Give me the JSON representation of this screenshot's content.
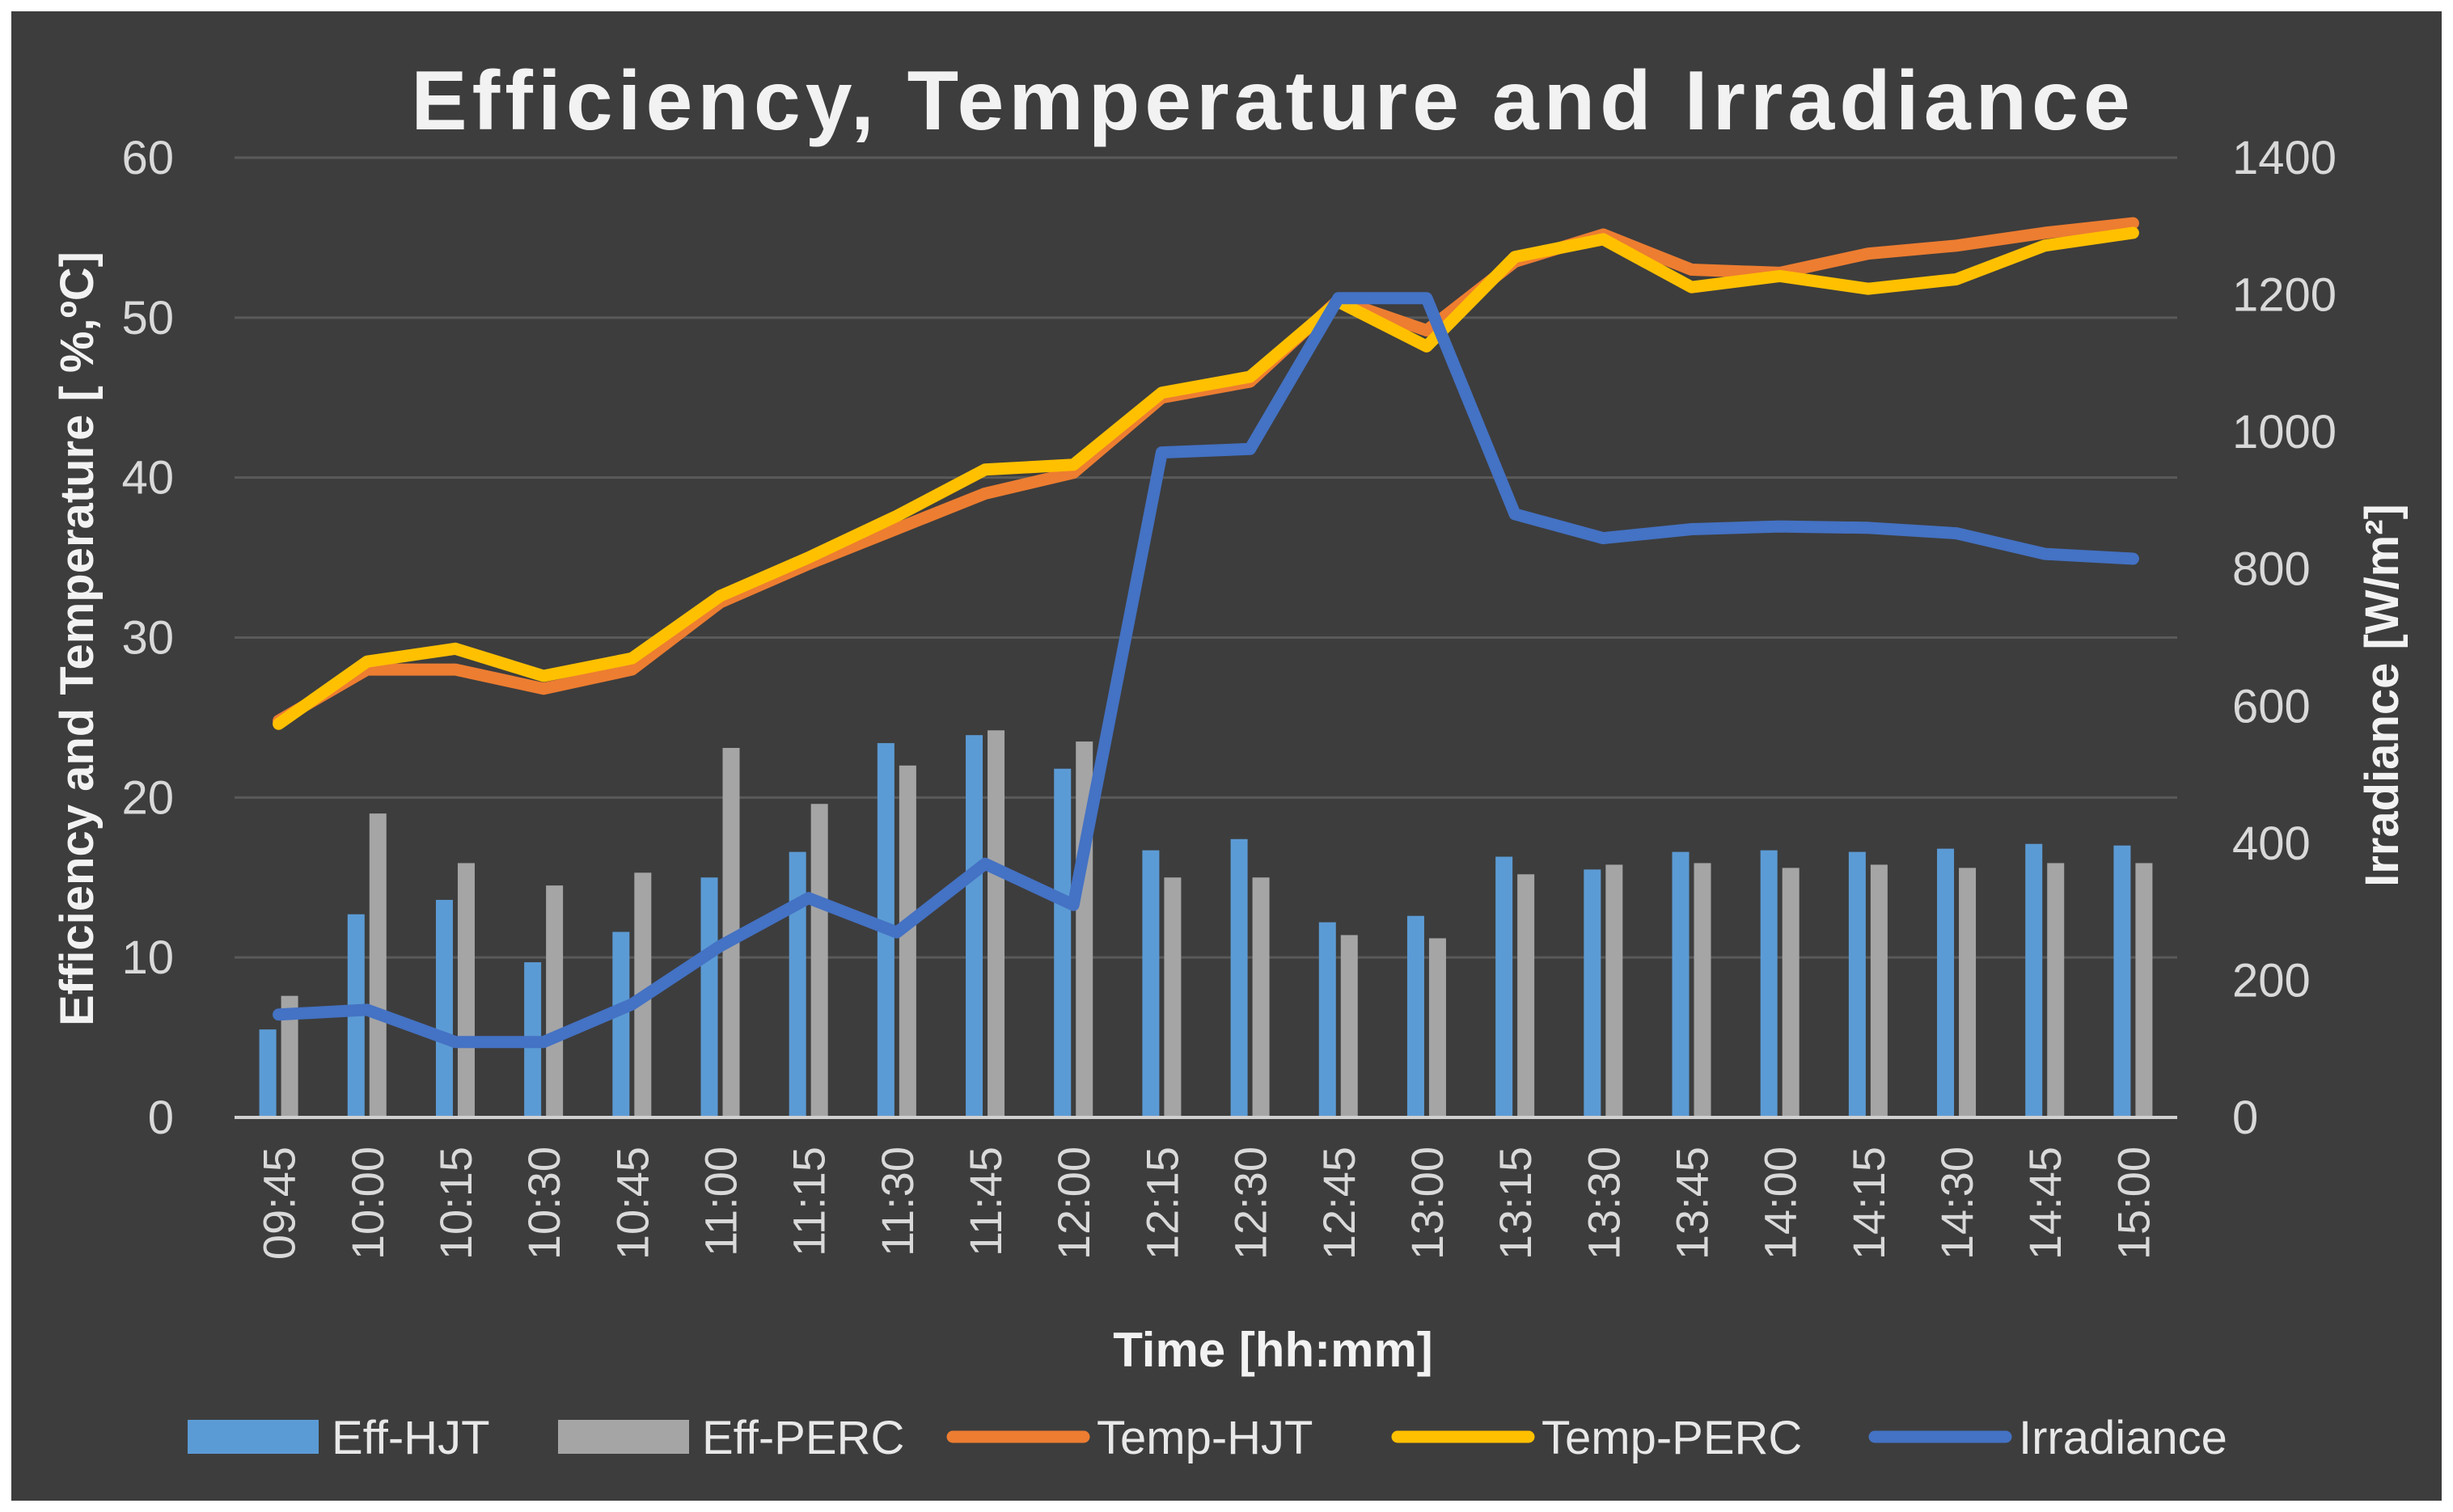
{
  "chart_data": {
    "type": "bar+line",
    "title": "Efficiency, Temperature and Irradiance",
    "xlabel": "Time [hh:mm]",
    "ylabel_left": "Efficiency and Temperature [ %,ºC]",
    "ylabel_right": "Irradiance [W/m²]",
    "ylim_left": [
      0,
      60
    ],
    "ylim_right": [
      0,
      1400
    ],
    "yticks_left": [
      0,
      10,
      20,
      30,
      40,
      50,
      60
    ],
    "yticks_right": [
      0,
      200,
      400,
      600,
      800,
      1000,
      1200,
      1400
    ],
    "grid": true,
    "legend_position": "bottom",
    "categories": [
      "09:45",
      "10:00",
      "10:15",
      "10:30",
      "10:45",
      "11:00",
      "11:15",
      "11:30",
      "11:45",
      "12:00",
      "12:15",
      "12:30",
      "12:45",
      "13:00",
      "13:15",
      "13:30",
      "13:45",
      "14:00",
      "14:15",
      "14:30",
      "14:45",
      "15:00"
    ],
    "series": [
      {
        "name": "Eff-HJT",
        "type": "bar",
        "axis": "left",
        "color": "#5B9BD5",
        "values": [
          5.5,
          12.7,
          13.6,
          9.7,
          11.6,
          15.0,
          16.6,
          23.4,
          23.9,
          21.8,
          16.7,
          17.4,
          12.2,
          12.6,
          16.3,
          15.5,
          16.6,
          16.7,
          16.6,
          16.8,
          17.1,
          17.0
        ]
      },
      {
        "name": "Eff-PERC",
        "type": "bar",
        "axis": "left",
        "color": "#A5A5A5",
        "values": [
          7.6,
          19.0,
          15.9,
          14.5,
          15.3,
          23.1,
          19.6,
          22.0,
          24.2,
          23.5,
          15.0,
          15.0,
          11.4,
          11.2,
          15.2,
          15.8,
          15.9,
          15.6,
          15.8,
          15.6,
          15.9,
          15.9
        ]
      },
      {
        "name": "Temp-HJT",
        "type": "line",
        "axis": "left",
        "color": "#ED7D31",
        "values": [
          24.8,
          28.0,
          28.0,
          26.8,
          28.0,
          32.2,
          34.6,
          36.8,
          39.0,
          40.3,
          45.0,
          46.0,
          51.1,
          49.2,
          53.5,
          55.2,
          53.0,
          52.8,
          54.0,
          54.5,
          55.3,
          55.9
        ]
      },
      {
        "name": "Temp-PERC",
        "type": "line",
        "axis": "left",
        "color": "#FFC000",
        "values": [
          24.6,
          28.5,
          29.3,
          27.6,
          28.7,
          32.6,
          35.0,
          37.6,
          40.5,
          40.8,
          45.3,
          46.3,
          51.0,
          48.2,
          53.8,
          54.9,
          51.9,
          52.6,
          51.8,
          52.4,
          54.5,
          55.3
        ]
      },
      {
        "name": "Irradiance",
        "type": "line",
        "axis": "right",
        "color": "#4472C4",
        "values": [
          150,
          157,
          110,
          110,
          165,
          250,
          320,
          270,
          370,
          310,
          970,
          975,
          1195,
          1195,
          880,
          845,
          858,
          862,
          860,
          852,
          822,
          815
        ]
      }
    ]
  }
}
